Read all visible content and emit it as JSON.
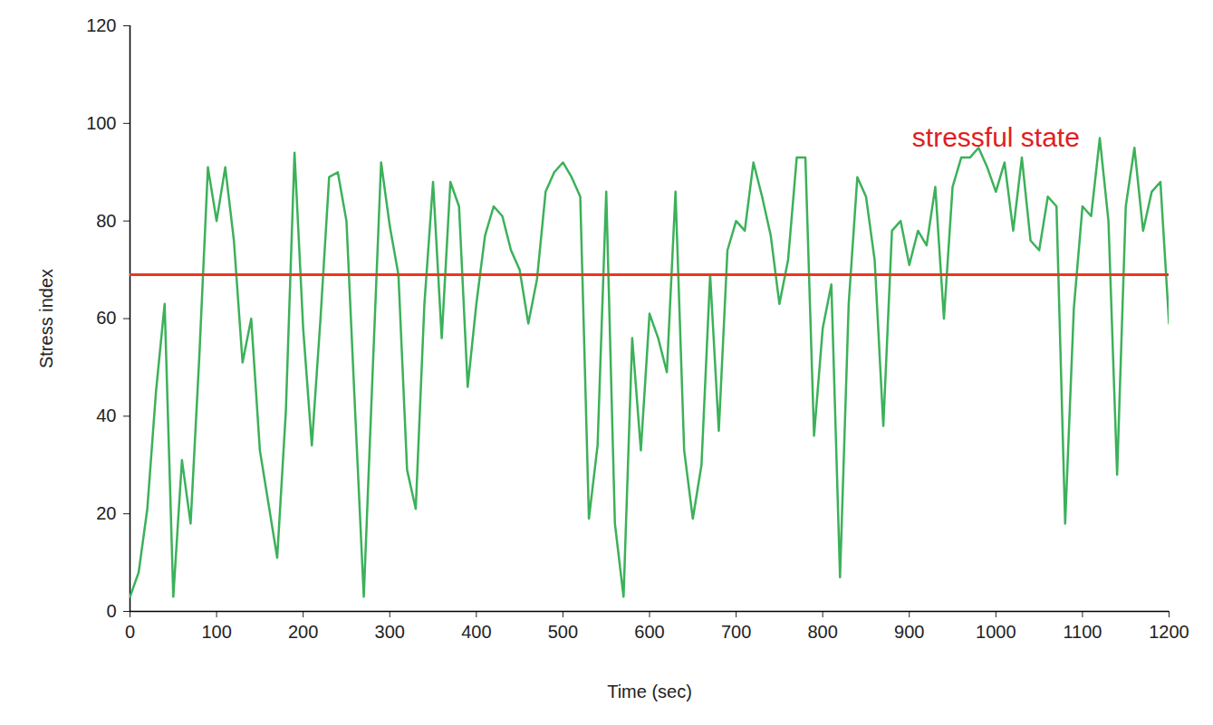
{
  "chart_data": {
    "type": "line",
    "x_label": "Time (sec)",
    "y_label": "Stress index",
    "xlim": [
      0,
      1200
    ],
    "ylim": [
      0,
      120
    ],
    "xticks": [
      0,
      100,
      200,
      300,
      400,
      500,
      600,
      700,
      800,
      900,
      1000,
      1100,
      1200
    ],
    "yticks": [
      0,
      20,
      40,
      60,
      80,
      100,
      120
    ],
    "grid": false,
    "color": "#3cb15a",
    "x": [
      0,
      10,
      20,
      30,
      40,
      50,
      60,
      70,
      80,
      90,
      100,
      110,
      120,
      130,
      140,
      150,
      160,
      170,
      180,
      190,
      200,
      210,
      220,
      230,
      240,
      250,
      260,
      270,
      280,
      290,
      300,
      310,
      320,
      330,
      340,
      350,
      360,
      370,
      380,
      390,
      400,
      410,
      420,
      430,
      440,
      450,
      460,
      470,
      480,
      490,
      500,
      510,
      520,
      530,
      540,
      550,
      560,
      570,
      580,
      590,
      600,
      610,
      620,
      630,
      640,
      650,
      660,
      670,
      680,
      690,
      700,
      710,
      720,
      730,
      740,
      750,
      760,
      770,
      780,
      790,
      800,
      810,
      820,
      830,
      840,
      850,
      860,
      870,
      880,
      890,
      900,
      910,
      920,
      930,
      940,
      950,
      960,
      970,
      980,
      990,
      1000,
      1010,
      1020,
      1030,
      1040,
      1050,
      1060,
      1070,
      1080,
      1090,
      1100,
      1110,
      1120,
      1130,
      1140,
      1150,
      1160,
      1170,
      1180,
      1190,
      1200
    ],
    "values": [
      3,
      8,
      21,
      45,
      63,
      3,
      31,
      18,
      52,
      91,
      80,
      91,
      76,
      51,
      60,
      33,
      22,
      11,
      41,
      94,
      58,
      34,
      60,
      89,
      90,
      80,
      41,
      3,
      48,
      92,
      79,
      69,
      29,
      21,
      63,
      88,
      56,
      88,
      83,
      46,
      63,
      77,
      83,
      81,
      74,
      70,
      59,
      68,
      86,
      90,
      92,
      89,
      85,
      19,
      34,
      86,
      18,
      3,
      56,
      33,
      61,
      56,
      49,
      86,
      33,
      19,
      30,
      69,
      37,
      74,
      80,
      78,
      92,
      85,
      77,
      63,
      72,
      93,
      93,
      36,
      58,
      67,
      7,
      63,
      89,
      85,
      72,
      38,
      78,
      80,
      71,
      78,
      75,
      87,
      60,
      87,
      93,
      93,
      95,
      91,
      86,
      92,
      78,
      93,
      76,
      74,
      85,
      83,
      18,
      62,
      83,
      81,
      97,
      80,
      28,
      83,
      95,
      78,
      86,
      88,
      59
    ],
    "threshold": {
      "value": 69,
      "color": "#e8381e"
    },
    "annotations": [
      {
        "text": "stressful state",
        "x": 1000,
        "y": 97,
        "color": "#e02020"
      }
    ]
  }
}
